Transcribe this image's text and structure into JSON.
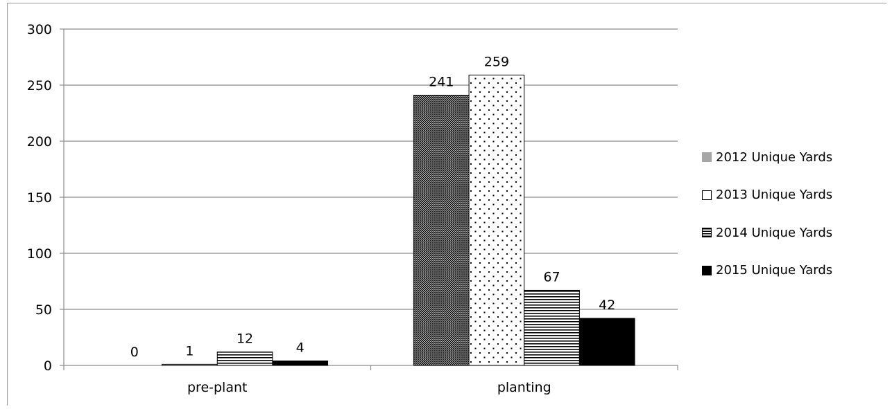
{
  "chart_data": {
    "type": "bar",
    "categories": [
      "pre-plant",
      "planting"
    ],
    "series": [
      {
        "name": "2012 Unique Yards",
        "values": [
          0,
          241
        ],
        "pattern": "crosshatch",
        "legend_color": "#a6a6a6"
      },
      {
        "name": "2013 Unique Yards",
        "values": [
          1,
          259
        ],
        "pattern": "dotted",
        "legend_color": "#ffffff"
      },
      {
        "name": "2014 Unique Yards",
        "values": [
          12,
          67
        ],
        "pattern": "horizontal-lines",
        "legend_color": "#000000"
      },
      {
        "name": "2015 Unique Yards",
        "values": [
          4,
          42
        ],
        "pattern": "solid",
        "legend_color": "#000000"
      }
    ],
    "yticks": [
      0,
      50,
      100,
      150,
      200,
      250,
      300
    ],
    "ylim": [
      0,
      300
    ],
    "title": "",
    "xlabel": "",
    "ylabel": "",
    "grid": true,
    "legend_position": "right",
    "data_labels": true
  }
}
